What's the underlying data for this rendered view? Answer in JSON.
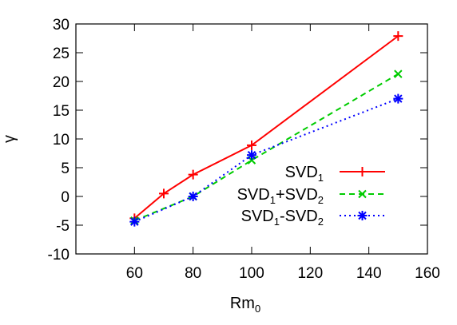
{
  "chart_data": {
    "type": "line",
    "xlabel": "Rm",
    "xlabel_sub": "0",
    "ylabel": "γ",
    "xlim": [
      40,
      160
    ],
    "ylim": [
      -10,
      30
    ],
    "xticks": [
      60,
      80,
      100,
      120,
      140,
      160
    ],
    "yticks": [
      -10,
      -5,
      0,
      5,
      10,
      15,
      20,
      25,
      30
    ],
    "grid": false,
    "legend_position": "lower-right",
    "series": [
      {
        "name": "SVD1",
        "legend_parts": [
          [
            "SVD",
            false
          ],
          [
            "1",
            true
          ]
        ],
        "color": "#ff0000",
        "dash": "solid",
        "marker": "plus",
        "x": [
          60,
          70,
          80,
          100,
          150
        ],
        "y": [
          -3.8,
          0.5,
          3.8,
          8.9,
          27.9
        ]
      },
      {
        "name": "SVD1+SVD2",
        "legend_parts": [
          [
            "SVD",
            false
          ],
          [
            "1",
            true
          ],
          [
            "+SVD",
            false
          ],
          [
            "2",
            true
          ]
        ],
        "color": "#00cc00",
        "dash": "dashed",
        "marker": "x",
        "x": [
          60,
          80,
          100,
          150
        ],
        "y": [
          -4.2,
          0.0,
          6.3,
          21.3
        ]
      },
      {
        "name": "SVD1-SVD2",
        "legend_parts": [
          [
            "SVD",
            false
          ],
          [
            "1",
            true
          ],
          [
            "-SVD",
            false
          ],
          [
            "2",
            true
          ]
        ],
        "color": "#0000ff",
        "dash": "dotted",
        "marker": "star",
        "x": [
          60,
          80,
          100,
          150
        ],
        "y": [
          -4.4,
          0.0,
          7.2,
          17.0
        ]
      }
    ]
  }
}
